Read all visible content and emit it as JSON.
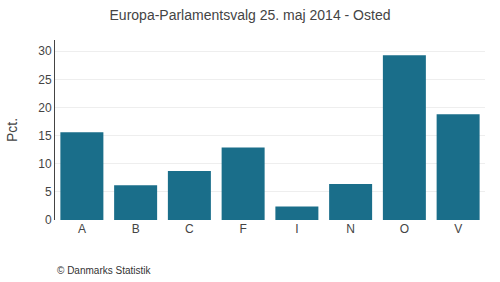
{
  "chart_data": {
    "type": "bar",
    "title": "Europa-Parlamentsvalg 25. maj 2014 - Osted",
    "categories": [
      "A",
      "B",
      "C",
      "F",
      "I",
      "N",
      "O",
      "V"
    ],
    "values": [
      15.6,
      6.2,
      8.7,
      12.9,
      2.4,
      6.4,
      29.3,
      18.8
    ],
    "color": "#1a6e8a",
    "ylabel": "Pct.",
    "ylim": [
      0,
      32
    ],
    "yticks": [
      0,
      5,
      10,
      15,
      20,
      25,
      30
    ],
    "grid": true,
    "footer": "© Danmarks Statistik"
  }
}
